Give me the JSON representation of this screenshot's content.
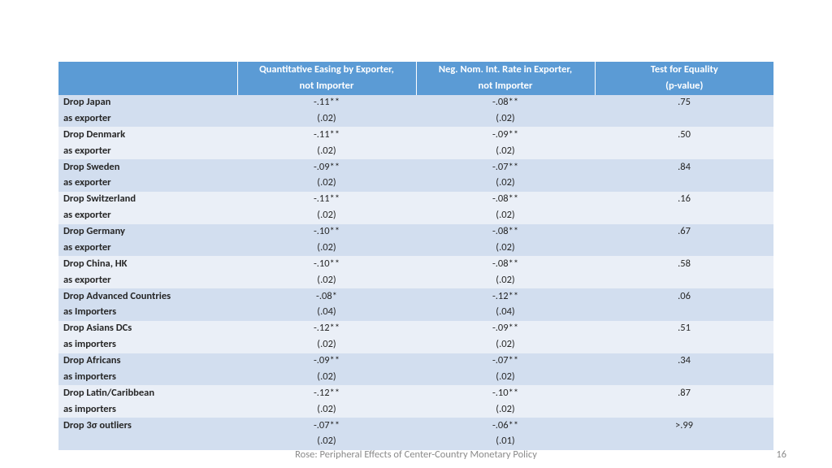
{
  "table": {
    "header_bg": "#5b9bd5",
    "band_a_bg": "#d2deef",
    "band_b_bg": "#eaeff7",
    "columns": [
      {
        "line1": "",
        "line2": ""
      },
      {
        "line1": "Quantitative Easing by Exporter,",
        "line2": "not Importer"
      },
      {
        "line1": "Neg. Nom. Int. Rate in Exporter,",
        "line2": "not Importer"
      },
      {
        "line1": "Test for Equality",
        "line2": "(p-value)"
      }
    ],
    "rows": [
      {
        "label1": "Drop Japan",
        "label2": "as exporter",
        "qe": "-.11**",
        "qe_se": "(.02)",
        "nn": "-.08**",
        "nn_se": "(.02)",
        "p": ".75"
      },
      {
        "label1": "Drop Denmark",
        "label2": "as exporter",
        "qe": "-.11**",
        "qe_se": "(.02)",
        "nn": "-.09**",
        "nn_se": "(.02)",
        "p": ".50"
      },
      {
        "label1": "Drop Sweden",
        "label2": "as exporter",
        "qe": "-.09**",
        "qe_se": "(.02)",
        "nn": "-.07**",
        "nn_se": "(.02)",
        "p": ".84"
      },
      {
        "label1": "Drop Switzerland",
        "label2": "as exporter",
        "qe": "-.11**",
        "qe_se": "(.02)",
        "nn": "-.08**",
        "nn_se": "(.02)",
        "p": ".16"
      },
      {
        "label1": "Drop Germany",
        "label2": "as exporter",
        "qe": "-.10**",
        "qe_se": "(.02)",
        "nn": "-.08**",
        "nn_se": "(.02)",
        "p": ".67"
      },
      {
        "label1": "Drop China, HK",
        "label2": "as exporter",
        "qe": "-.10**",
        "qe_se": "(.02)",
        "nn": "-.08**",
        "nn_se": "(.02)",
        "p": ".58"
      },
      {
        "label1": "Drop Advanced Countries",
        "label2": "as Importers",
        "qe": "-.08*",
        "qe_se": "(.04)",
        "nn": "-.12**",
        "nn_se": "(.04)",
        "p": ".06"
      },
      {
        "label1": "Drop Asians DCs",
        "label2": "as importers",
        "qe": "-.12**",
        "qe_se": "(.02)",
        "nn": "-.09**",
        "nn_se": "(.02)",
        "p": ".51"
      },
      {
        "label1": "Drop Africans",
        "label2": "as importers",
        "qe": "-.09**",
        "qe_se": "(.02)",
        "nn": "-.07**",
        "nn_se": "(.02)",
        "p": ".34"
      },
      {
        "label1": "Drop Latin/Caribbean",
        "label2": "as importers",
        "qe": "-.12**",
        "qe_se": "(.02)",
        "nn": "-.10**",
        "nn_se": "(.02)",
        "p": ".87"
      },
      {
        "label1": "Drop 3σ outliers",
        "label2": "",
        "qe": "-.07**",
        "qe_se": "(.02)",
        "nn": "-.06**",
        "nn_se": "(.01)",
        "p": ">.99"
      }
    ]
  },
  "footer": {
    "caption": "Rose: Peripheral Effects of Center-Country Monetary Policy",
    "page": "16"
  }
}
